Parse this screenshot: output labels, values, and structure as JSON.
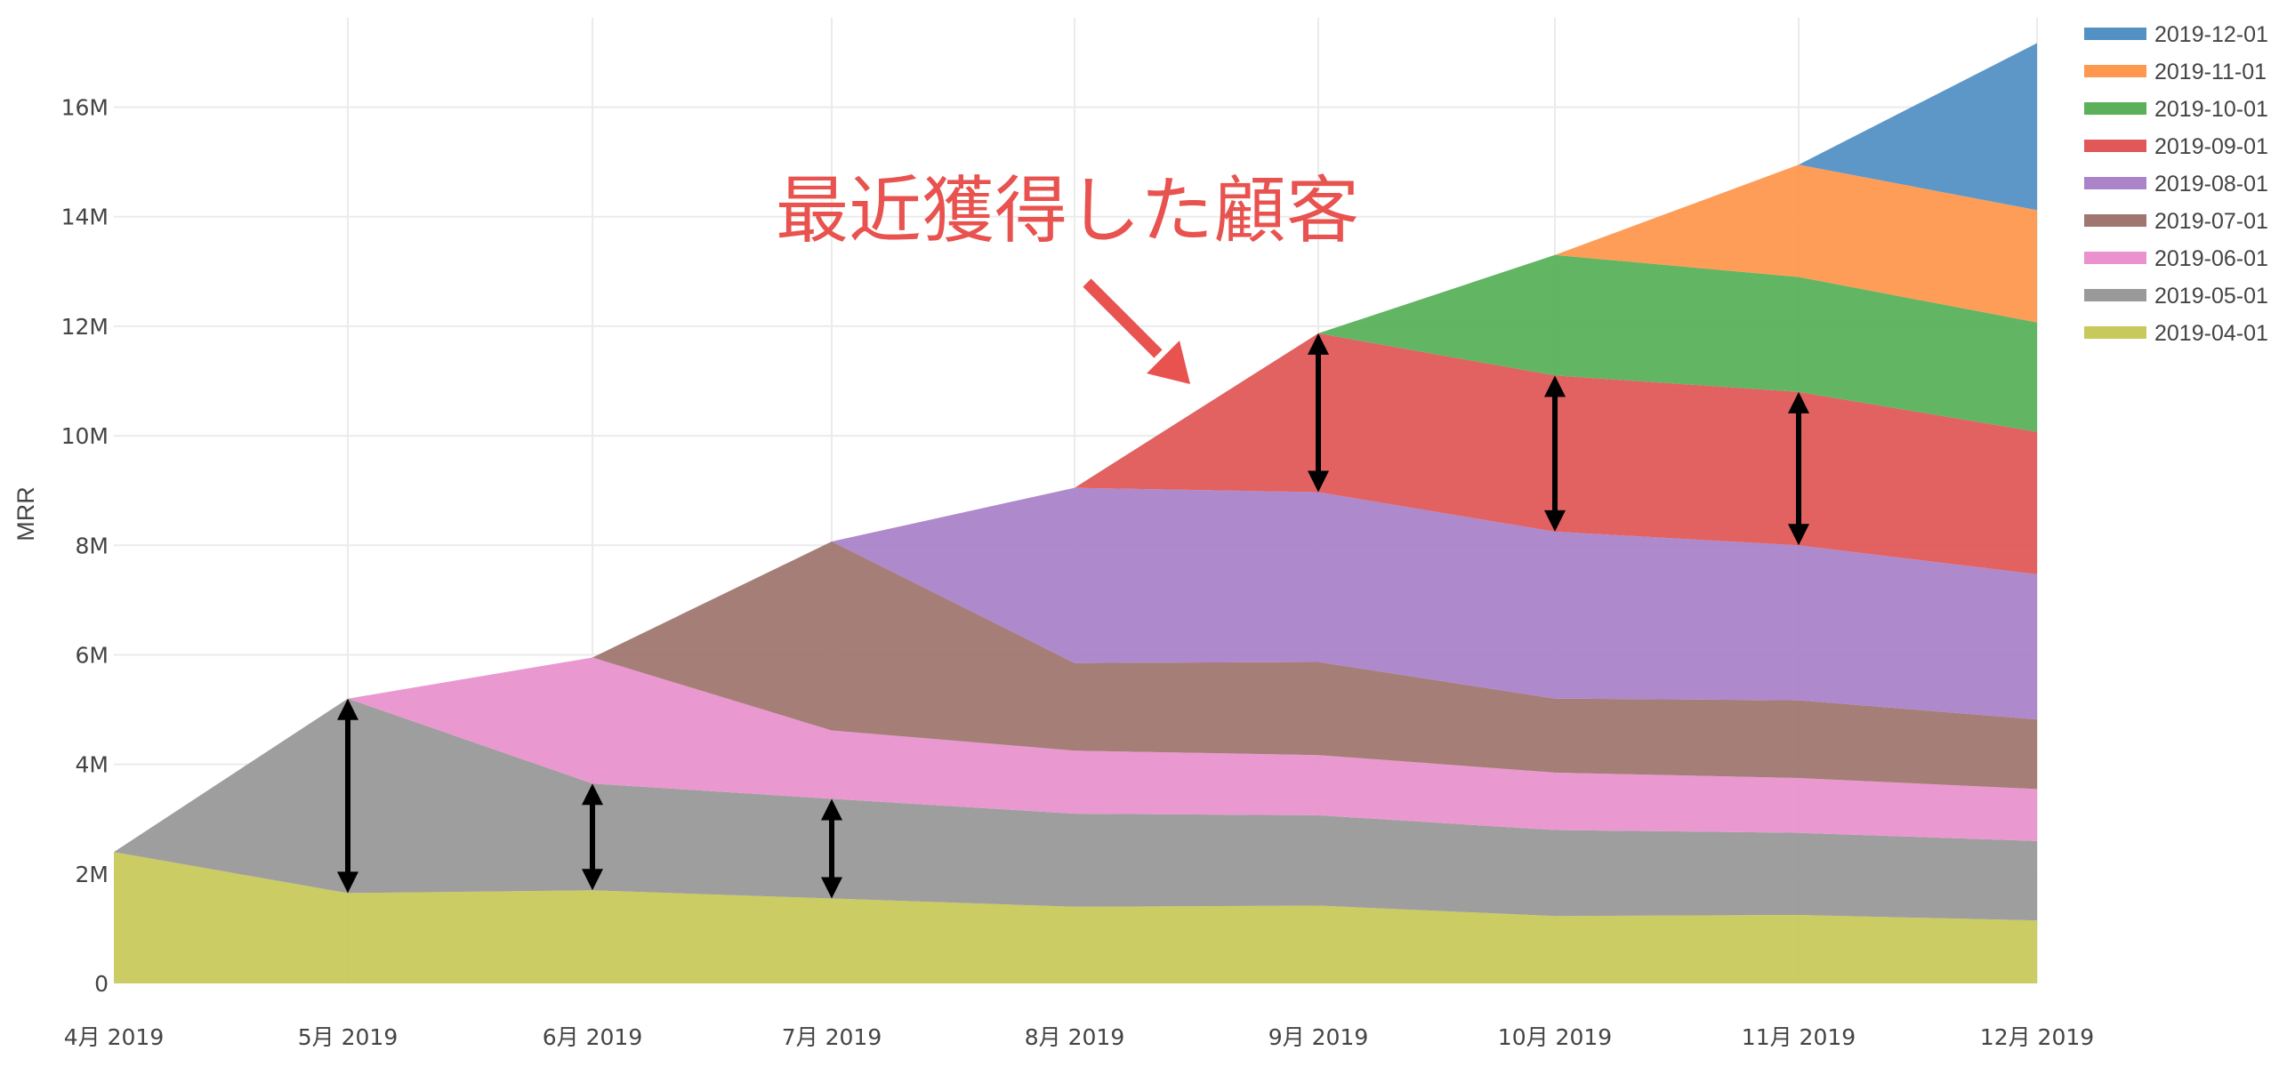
{
  "chart_data": {
    "type": "area",
    "stacked": true,
    "ylabel": "MRR",
    "ylim": [
      0,
      17600000
    ],
    "y_ticks": [
      0,
      2000000,
      4000000,
      6000000,
      8000000,
      10000000,
      12000000,
      14000000,
      16000000
    ],
    "y_tick_labels": [
      "0",
      "2M",
      "4M",
      "6M",
      "8M",
      "10M",
      "12M",
      "14M",
      "16M"
    ],
    "x_labels": [
      "4月 2019",
      "5月 2019",
      "6月 2019",
      "7月 2019",
      "8月 2019",
      "9月 2019",
      "10月 2019",
      "11月 2019",
      "12月 2019"
    ],
    "grid": true,
    "legend_position": "top-right",
    "series": [
      {
        "name": "2019-04-01",
        "color": "#c8c95b",
        "values": [
          2400000.0,
          1650000.0,
          1700000.0,
          1550000.0,
          1400000.0,
          1420000.0,
          1230000.0,
          1250000.0,
          1150000.0
        ]
      },
      {
        "name": "2019-05-01",
        "color": "#999999",
        "values": [
          0,
          3550000.0,
          1950000.0,
          1820000.0,
          1700000.0,
          1650000.0,
          1570000.0,
          1500000.0,
          1450000.0
        ]
      },
      {
        "name": "2019-06-01",
        "color": "#e992cd",
        "values": [
          0,
          0,
          2300000.0,
          1250000.0,
          1150000.0,
          1100000.0,
          1050000.0,
          1000000.0,
          950000.0
        ]
      },
      {
        "name": "2019-07-01",
        "color": "#a07770",
        "values": [
          0,
          0,
          0,
          3450000.0,
          1600000.0,
          1700000.0,
          1350000.0,
          1420000.0,
          1270000.0
        ]
      },
      {
        "name": "2019-08-01",
        "color": "#aa83c9",
        "values": [
          0,
          0,
          0,
          0,
          3200000.0,
          3100000.0,
          3050000.0,
          2830000.0,
          2650000.0
        ]
      },
      {
        "name": "2019-09-01",
        "color": "#e05858",
        "values": [
          0,
          0,
          0,
          0,
          0,
          2900000.0,
          2850000.0,
          2800000.0,
          2600000.0
        ]
      },
      {
        "name": "2019-10-01",
        "color": "#5ab15a",
        "values": [
          0,
          0,
          0,
          0,
          0,
          0,
          2200000.0,
          2100000.0,
          2000000.0
        ]
      },
      {
        "name": "2019-11-01",
        "color": "#fe984f",
        "values": [
          0,
          0,
          0,
          0,
          0,
          0,
          0,
          2050000.0,
          2050000.0
        ]
      },
      {
        "name": "2019-12-01",
        "color": "#5391c4",
        "values": [
          0,
          0,
          0,
          0,
          0,
          0,
          0,
          0,
          3050000.0
        ]
      }
    ],
    "annotations": [
      {
        "text": "最近獲得した顧客",
        "color": "#e8524f"
      }
    ]
  }
}
